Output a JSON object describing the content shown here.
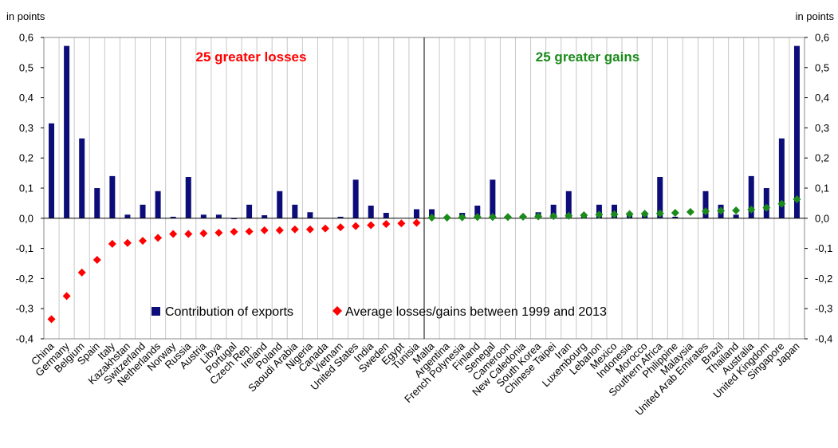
{
  "chart_data": {
    "type": "bar",
    "y_unit_left": "in points",
    "y_unit_right": "in points",
    "ylim": [
      -0.4,
      0.6
    ],
    "yticks": [
      "-0,4",
      "-0,3",
      "-0,2",
      "-0,1",
      "0,0",
      "0,1",
      "0,2",
      "0,3",
      "0,4",
      "0,5",
      "0,6"
    ],
    "grid_vertical": true,
    "annotations": {
      "losses": "25 greater losses",
      "gains": "25 greater gains"
    },
    "colors": {
      "bars": "#0d0d7a",
      "losses": "#ff0000",
      "gains": "#1a8a1a",
      "grid": "#c8c8c8"
    },
    "categories": [
      "China",
      "Germany",
      "Belgium",
      "Spain",
      "Italy",
      "Kazakhstan",
      "Switzerland",
      "Netherlands",
      "Norway",
      "Russia",
      "Austria",
      "Libya",
      "Portugal",
      "Czech Rep.",
      "Ireland",
      "Poland",
      "Saoudi Arabia",
      "Nigeria",
      "Canada",
      "Vietnam",
      "United States",
      "India",
      "Sweden",
      "Egypt",
      "Tunisia",
      "Malta",
      "Argentina",
      "French Polynesia",
      "Finland",
      "Senegal",
      "Cameroon",
      "New Caledonia",
      "South Korea",
      "Chinese Taipei",
      "Iran",
      "Luxembourg",
      "Lebanon",
      "Mexico",
      "Indonesia",
      "Morocco",
      "Southern Africa",
      "Philippine",
      "Malaysia",
      "United Arab Emirates",
      "Brazil",
      "Thailand",
      "Australia",
      "United Kingdom",
      "Singapore",
      "Japan"
    ],
    "series": [
      {
        "name": "Contribution of exports",
        "kind": "bar",
        "values": [
          0.315,
          0.572,
          0.265,
          0.1,
          0.14,
          0.012,
          0.045,
          0.09,
          0.005,
          0.137,
          0.012,
          0.012,
          -0.003,
          0.045,
          0.01,
          0.09,
          0.045,
          0.02,
          0.0,
          0.005,
          0.128,
          0.042,
          0.018,
          0.0,
          0.03,
          0.03,
          0.0,
          0.018,
          0.042,
          0.128,
          0.005,
          0.0,
          0.02,
          0.045,
          0.09,
          0.01,
          0.045,
          0.045,
          0.012,
          0.012,
          0.137,
          0.005,
          0.0,
          0.09,
          0.045,
          0.012,
          0.14,
          0.1,
          0.265,
          0.572
        ]
      },
      {
        "name": "Average losses/gains between 1999 and 2013",
        "kind": "marker",
        "values": [
          -0.335,
          -0.258,
          -0.18,
          -0.138,
          -0.085,
          -0.082,
          -0.075,
          -0.065,
          -0.052,
          -0.052,
          -0.05,
          -0.048,
          -0.045,
          -0.044,
          -0.04,
          -0.04,
          -0.037,
          -0.037,
          -0.034,
          -0.03,
          -0.026,
          -0.023,
          -0.019,
          -0.017,
          -0.015,
          0.002,
          0.002,
          0.003,
          0.004,
          0.004,
          0.004,
          0.005,
          0.006,
          0.007,
          0.008,
          0.01,
          0.012,
          0.013,
          0.014,
          0.015,
          0.016,
          0.018,
          0.021,
          0.023,
          0.025,
          0.026,
          0.029,
          0.035,
          0.048,
          0.063
        ]
      }
    ]
  }
}
